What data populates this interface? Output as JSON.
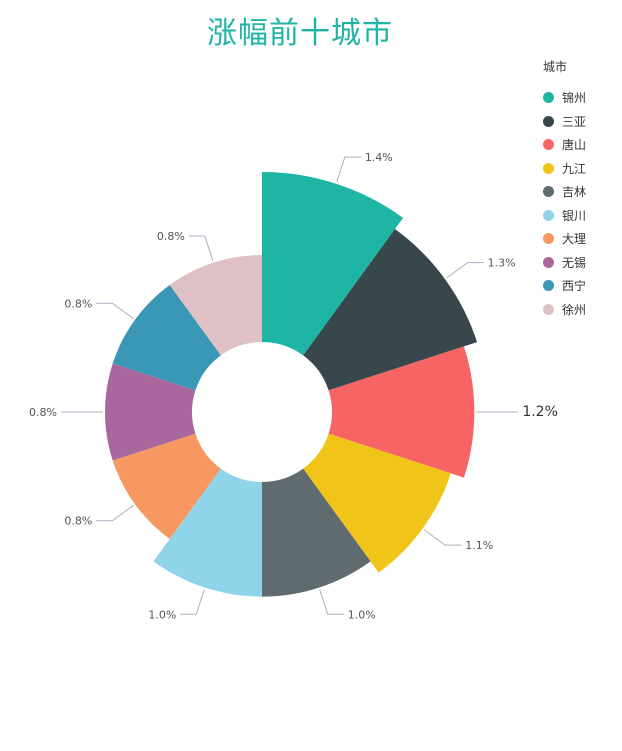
{
  "chart_data": {
    "type": "pie",
    "title": "涨幅前十城市",
    "legend_title": "城市",
    "legend_position": "top-right",
    "categories": [
      "锦州",
      "三亚",
      "唐山",
      "九江",
      "吉林",
      "银川",
      "大理",
      "无锡",
      "西宁",
      "徐州"
    ],
    "values": [
      1.4,
      1.3,
      1.2,
      1.1,
      1.0,
      1.0,
      0.8,
      0.8,
      0.8,
      0.8
    ],
    "labels": [
      "1.4%",
      "1.3%",
      "1.2%",
      "1.1%",
      "1.0%",
      "1.0%",
      "0.8%",
      "0.8%",
      "0.8%",
      "0.8%"
    ],
    "colors": [
      "#1fb5a5",
      "#37474c",
      "#f76464",
      "#f0c418",
      "#5f6b6e",
      "#8fd4e8",
      "#f79863",
      "#a8689d",
      "#3b97b6",
      "#dfc0c4"
    ],
    "rose_type": "radius"
  }
}
